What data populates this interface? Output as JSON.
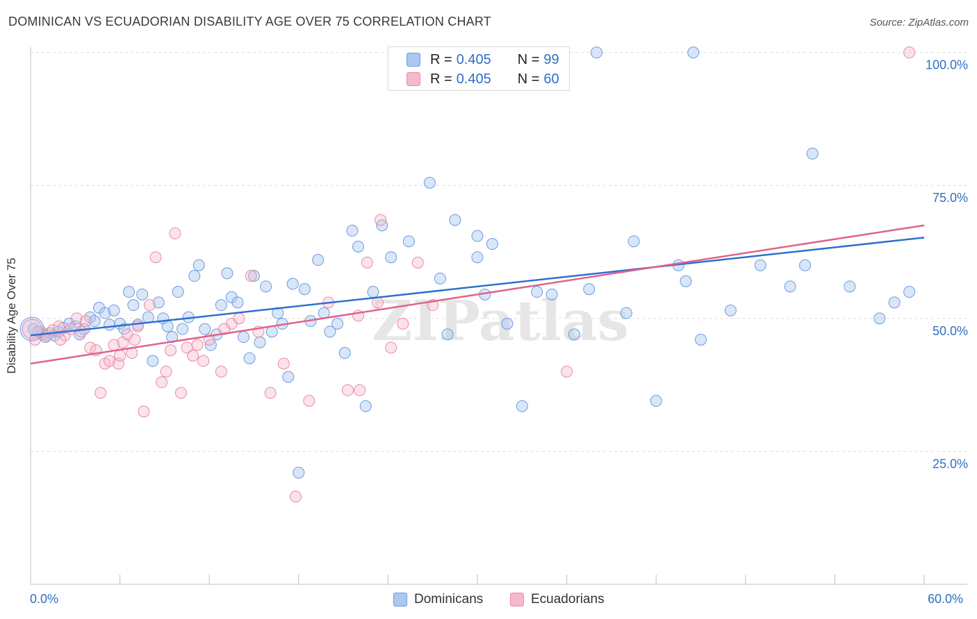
{
  "title": "DOMINICAN VS ECUADORIAN DISABILITY AGE OVER 75 CORRELATION CHART",
  "source": "Source: ZipAtlas.com",
  "watermark": "ZIPatlas",
  "legend": [
    {
      "r_label": "R =",
      "r_value": "0.405",
      "n_label": "N =",
      "n_value": "99",
      "color": "#aac8f0",
      "edge": "#6b9be0"
    },
    {
      "r_label": "R =",
      "r_value": "0.405",
      "n_label": "N =",
      "n_value": "60",
      "color": "#f6b9cb",
      "edge": "#e98aa8"
    }
  ],
  "bottom_legend": [
    {
      "label": "Dominicans",
      "color": "#aac8f0",
      "edge": "#6b9be0"
    },
    {
      "label": "Ecuadorians",
      "color": "#f6b9cb",
      "edge": "#e98aa8"
    }
  ],
  "x_min_label": "0.0%",
  "x_max_label": "60.0%",
  "chart_data": {
    "type": "scatter",
    "title": "DOMINICAN VS ECUADORIAN DISABILITY AGE OVER 75 CORRELATION CHART",
    "xlabel": "",
    "ylabel": "Disability Age Over 75",
    "xlim": [
      0,
      60
    ],
    "ylim": [
      0,
      101
    ],
    "ytick_labels": [
      "25.0%",
      "50.0%",
      "75.0%",
      "100.0%"
    ],
    "yticks": [
      25,
      50,
      75,
      100
    ],
    "grid": true,
    "legend_position": "top-center",
    "colors": {
      "Dominicans": "#6b9be0",
      "Ecuadorians": "#e98aa8",
      "Dominicans_line": "#2f6fd0",
      "Ecuadorians_line": "#e0628c"
    },
    "series": [
      {
        "name": "Dominicans",
        "r": 0.405,
        "n": 99,
        "trend": {
          "x": [
            0,
            60
          ],
          "y": [
            46.8,
            65.2
          ]
        },
        "points": [
          [
            0.2,
            48.0
          ],
          [
            0.5,
            47.5
          ],
          [
            0.8,
            47.0
          ],
          [
            1.0,
            46.5
          ],
          [
            1.3,
            47.2
          ],
          [
            1.6,
            46.8
          ],
          [
            1.9,
            47.5
          ],
          [
            2.2,
            48.2
          ],
          [
            2.6,
            49.0
          ],
          [
            3.0,
            48.5
          ],
          [
            3.3,
            47.0
          ],
          [
            3.6,
            48.0
          ],
          [
            4.0,
            50.2
          ],
          [
            4.3,
            49.5
          ],
          [
            4.6,
            52.0
          ],
          [
            5.0,
            51.0
          ],
          [
            5.3,
            48.8
          ],
          [
            5.6,
            51.5
          ],
          [
            6.0,
            49.0
          ],
          [
            6.3,
            48.0
          ],
          [
            6.6,
            55.0
          ],
          [
            6.9,
            52.5
          ],
          [
            7.2,
            48.8
          ],
          [
            7.5,
            54.5
          ],
          [
            7.9,
            50.2
          ],
          [
            8.2,
            42.0
          ],
          [
            8.6,
            53.0
          ],
          [
            8.9,
            50.0
          ],
          [
            9.2,
            48.5
          ],
          [
            9.5,
            46.5
          ],
          [
            9.9,
            55.0
          ],
          [
            10.2,
            48.0
          ],
          [
            10.6,
            50.2
          ],
          [
            11.0,
            58.0
          ],
          [
            11.3,
            60.0
          ],
          [
            11.7,
            48.0
          ],
          [
            12.1,
            45.0
          ],
          [
            12.5,
            47.0
          ],
          [
            12.8,
            52.5
          ],
          [
            13.2,
            58.5
          ],
          [
            13.5,
            54.0
          ],
          [
            13.9,
            53.0
          ],
          [
            14.3,
            46.5
          ],
          [
            14.7,
            42.5
          ],
          [
            15.0,
            58.0
          ],
          [
            15.4,
            45.5
          ],
          [
            15.8,
            56.0
          ],
          [
            16.2,
            47.5
          ],
          [
            16.6,
            51.0
          ],
          [
            16.9,
            49.0
          ],
          [
            17.3,
            39.0
          ],
          [
            17.6,
            56.5
          ],
          [
            18.0,
            21.0
          ],
          [
            18.4,
            55.5
          ],
          [
            18.8,
            49.5
          ],
          [
            19.3,
            61.0
          ],
          [
            19.7,
            51.0
          ],
          [
            20.1,
            47.5
          ],
          [
            20.6,
            49.0
          ],
          [
            21.1,
            43.5
          ],
          [
            21.6,
            66.5
          ],
          [
            22.0,
            63.5
          ],
          [
            22.5,
            33.5
          ],
          [
            23.0,
            55.0
          ],
          [
            23.6,
            67.5
          ],
          [
            24.2,
            61.5
          ],
          [
            25.4,
            64.5
          ],
          [
            26.8,
            75.5
          ],
          [
            27.5,
            57.5
          ],
          [
            28.0,
            47.0
          ],
          [
            28.5,
            68.5
          ],
          [
            30.0,
            61.5
          ],
          [
            30.5,
            54.5
          ],
          [
            30.0,
            65.5
          ],
          [
            31.0,
            64.0
          ],
          [
            32.0,
            49.0
          ],
          [
            33.0,
            33.5
          ],
          [
            34.0,
            55.0
          ],
          [
            35.0,
            54.5
          ],
          [
            36.5,
            47.0
          ],
          [
            37.5,
            55.5
          ],
          [
            38.0,
            100.0
          ],
          [
            40.0,
            51.0
          ],
          [
            40.5,
            64.5
          ],
          [
            42.0,
            34.5
          ],
          [
            43.5,
            60.0
          ],
          [
            44.0,
            57.0
          ],
          [
            44.5,
            100.0
          ],
          [
            45.0,
            46.0
          ],
          [
            47.0,
            51.5
          ],
          [
            49.0,
            60.0
          ],
          [
            51.0,
            56.0
          ],
          [
            52.0,
            60.0
          ],
          [
            52.5,
            81.0
          ],
          [
            55.0,
            56.0
          ],
          [
            58.0,
            53.0
          ],
          [
            59.0,
            55.0
          ],
          [
            57.0,
            50.0
          ]
        ]
      },
      {
        "name": "Ecuadorians",
        "r": 0.405,
        "n": 60,
        "trend": {
          "x": [
            0,
            60
          ],
          "y": [
            41.5,
            67.5
          ]
        },
        "points": [
          [
            0.3,
            46.0
          ],
          [
            0.7,
            47.5
          ],
          [
            1.1,
            46.8
          ],
          [
            1.5,
            47.8
          ],
          [
            1.9,
            48.5
          ],
          [
            2.3,
            46.8
          ],
          [
            2.7,
            48.0
          ],
          [
            3.1,
            50.0
          ],
          [
            3.4,
            47.5
          ],
          [
            3.7,
            49.5
          ],
          [
            4.0,
            44.5
          ],
          [
            4.4,
            44.0
          ],
          [
            4.7,
            36.0
          ],
          [
            5.0,
            41.5
          ],
          [
            5.3,
            42.0
          ],
          [
            5.6,
            45.0
          ],
          [
            5.9,
            41.5
          ],
          [
            6.2,
            45.5
          ],
          [
            6.5,
            47.0
          ],
          [
            6.8,
            43.5
          ],
          [
            7.2,
            48.5
          ],
          [
            7.6,
            32.5
          ],
          [
            8.0,
            52.5
          ],
          [
            8.4,
            61.5
          ],
          [
            8.8,
            38.0
          ],
          [
            9.1,
            40.0
          ],
          [
            9.4,
            44.0
          ],
          [
            9.7,
            66.0
          ],
          [
            10.1,
            36.0
          ],
          [
            10.5,
            44.5
          ],
          [
            10.9,
            43.0
          ],
          [
            11.2,
            45.0
          ],
          [
            11.6,
            42.0
          ],
          [
            12.0,
            46.0
          ],
          [
            12.8,
            40.0
          ],
          [
            13.5,
            49.0
          ],
          [
            14.0,
            50.0
          ],
          [
            14.8,
            58.0
          ],
          [
            15.3,
            47.5
          ],
          [
            16.1,
            36.0
          ],
          [
            17.0,
            41.5
          ],
          [
            17.8,
            16.5
          ],
          [
            18.7,
            34.5
          ],
          [
            20.0,
            53.0
          ],
          [
            21.3,
            36.5
          ],
          [
            22.1,
            36.5
          ],
          [
            22.6,
            60.5
          ],
          [
            23.3,
            53.0
          ],
          [
            24.2,
            44.5
          ],
          [
            25.0,
            49.0
          ],
          [
            27.0,
            52.5
          ],
          [
            36.0,
            40.0
          ],
          [
            59.0,
            100.0
          ],
          [
            22.0,
            50.5
          ],
          [
            23.5,
            68.5
          ],
          [
            26.0,
            60.5
          ],
          [
            13.0,
            48.0
          ],
          [
            7.0,
            46.0
          ],
          [
            6.0,
            43.0
          ],
          [
            2.0,
            46.0
          ]
        ]
      }
    ]
  }
}
